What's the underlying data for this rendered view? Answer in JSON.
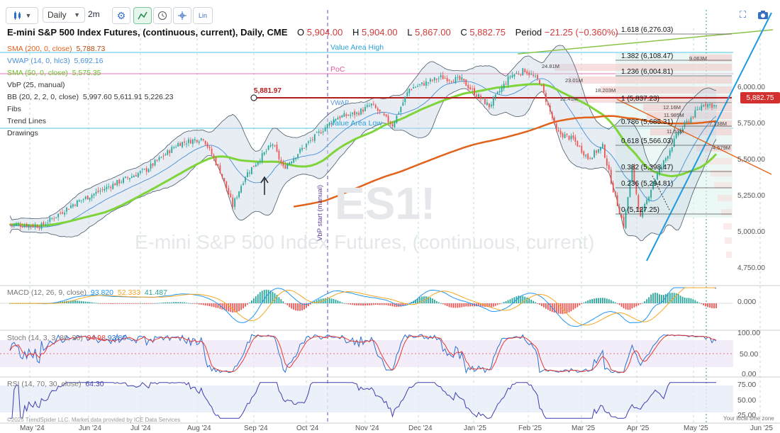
{
  "toolbar": {
    "chart_type_icon": "candlestick-icon",
    "interval": "Daily",
    "range": "2m",
    "lin_label": "Lin",
    "icons": [
      "gear-icon",
      "trend-icon",
      "clock-icon",
      "crosshair-icon",
      "fullscreen-icon",
      "camera-icon"
    ]
  },
  "header": {
    "title": "E-mini S&P 500 Index Futures, (continuous, current), Daily, CME",
    "o_label": "O",
    "o_value": "5,904.00",
    "h_label": "H",
    "h_value": "5,904.00",
    "l_label": "L",
    "l_value": "5,867.00",
    "c_label": "C",
    "c_value": "5,882.75",
    "period_label": "Period",
    "period_value": "−21.25 (−0.360%)"
  },
  "legend": {
    "sma200": {
      "label": "SMA (200, 0, close)",
      "value": "5,788.73",
      "color": "#e1621b"
    },
    "vwap": {
      "label": "VWAP (14, 0, hlc3)",
      "value": "5,692.16",
      "color": "#4a8fd6"
    },
    "sma50": {
      "label": "SMA (50, 0, close)",
      "value": "5,575.35",
      "color": "#7fd43a"
    },
    "vbp": {
      "label": "VbP (25, manual)"
    },
    "bb": {
      "label": "BB (20, 2, 2, 0, close)",
      "values": "5,997.60  5,611.91  5,226.23"
    },
    "fibs": "Fibs",
    "trend_lines": "Trend Lines",
    "drawings": "Drawings"
  },
  "watermark": {
    "symbol": "ES1!",
    "name": "E-mini S&P 500 Index Futures, (continuous, current)"
  },
  "annotations": {
    "value_area_high": "Value Area High",
    "poc": "PoC",
    "value_area_low": "Value Area Low",
    "vwap_tag": "VWAP",
    "vbp_start": "VbP start (manual)",
    "level_tag": "5,881.97",
    "last_price": "5,882.75"
  },
  "fib_levels": [
    {
      "label": "1.618 (6,276.03)",
      "value": 6276.03
    },
    {
      "label": "1.382 (6,108.47)",
      "value": 6108.47
    },
    {
      "label": "1.236 (6,004.81)",
      "value": 6004.81
    },
    {
      "label": "1 (5,837.23)",
      "value": 5837.23
    },
    {
      "label": "0.786 (5,685.31)",
      "value": 5685.31
    },
    {
      "label": "0.618 (5,566.03)",
      "value": 5566.03
    },
    {
      "label": "0.382 (5,398.47)",
      "value": 5398.47
    },
    {
      "label": "0.236 (5,294.81)",
      "value": 5294.81
    },
    {
      "label": "0 (5,127.25)",
      "value": 5127.25
    }
  ],
  "vbp_labels": [
    "9.063M",
    "24.81M",
    "23.01M",
    "18.203M",
    "22.41M",
    "12.16M",
    "11.985M",
    "7.138M",
    "11.53M",
    "4.579M"
  ],
  "price_axis": {
    "ticks": [
      6000,
      5750,
      5500,
      5250,
      5000,
      4750
    ],
    "labels": [
      "6,000.00",
      "5,750.00",
      "5,500.00",
      "5,250.00",
      "5,000.00",
      "4,750.00"
    ]
  },
  "macd": {
    "label": "MACD (12, 26, 9, close)",
    "v1": "93.820",
    "v2": "52.333",
    "v3": "41.487",
    "axis_label": "0.000"
  },
  "stoch": {
    "label": "Stoch (14, 3, 3, 80, 20)",
    "v1": "94.98",
    "v2": "93.86",
    "axis_labels": [
      "100.00",
      "50.00",
      "0.00"
    ]
  },
  "rsi": {
    "label": "RSI (14, 70, 30, close)",
    "value": "64.30",
    "axis_labels": [
      "75.00",
      "50.00",
      "25.00"
    ]
  },
  "x_axis": {
    "labels": [
      "May '24",
      "Jun '24",
      "Jul '24",
      "Aug '24",
      "Sep '24",
      "Oct '24",
      "Nov '24",
      "Dec '24",
      "Jan '25",
      "Feb '25",
      "Mar '25",
      "Apr '25",
      "May '25",
      "Jun '25"
    ]
  },
  "footer": {
    "copyright": "©2025 TrendSpider LLC. Market data provided by ICE Data Services",
    "timezone": "Your local time zone"
  },
  "colors": {
    "up": "#26a69a",
    "down": "#ef5350",
    "sma200": "#e1621b",
    "sma50": "#7fd43a",
    "vwap": "#4a8fd6",
    "trend_blue": "#1e9be0",
    "trend_green": "#8bc34a",
    "level_red": "#b71c1c",
    "macd": "#2196f3",
    "signal": "#f5a623",
    "stoch_k": "#2c6fd1",
    "stoch_d": "#e53935",
    "rsi": "#3f3fb0"
  },
  "chart_data": [
    {
      "type": "candlestick",
      "title": "E-mini S&P 500 Index Futures, (continuous, current), Daily, CME",
      "x": [
        "May '24",
        "Jun '24",
        "Jul '24",
        "Aug '24",
        "Sep '24",
        "Oct '24",
        "Nov '24",
        "Dec '24",
        "Jan '25",
        "Feb '25",
        "Mar '25",
        "Apr '25",
        "May '25"
      ],
      "series": [
        {
          "name": "Close",
          "values": [
            5280,
            5440,
            5620,
            5360,
            5560,
            5760,
            5950,
            6050,
            5960,
            6090,
            5650,
            5100,
            5880
          ]
        },
        {
          "name": "SMA (200, 0, close)",
          "values": [
            null,
            null,
            null,
            null,
            null,
            5250,
            5400,
            5560,
            5660,
            5730,
            5760,
            5740,
            5789
          ]
        },
        {
          "name": "SMA (50, 0, close)",
          "values": [
            5120,
            5230,
            5380,
            5440,
            5460,
            5600,
            5780,
            5920,
            5980,
            6000,
            5900,
            5600,
            5575
          ]
        }
      ],
      "ylim": [
        4750,
        6350
      ]
    },
    {
      "type": "line",
      "title": "MACD (12, 26, 9, close)",
      "series": [
        {
          "name": "MACD",
          "values": [
            20,
            30,
            40,
            -40,
            20,
            30,
            40,
            50,
            10,
            20,
            -80,
            -150,
            94
          ]
        },
        {
          "name": "Signal",
          "values": [
            15,
            25,
            35,
            -20,
            10,
            25,
            35,
            45,
            15,
            15,
            -60,
            -120,
            52
          ]
        }
      ]
    },
    {
      "type": "line",
      "title": "Stoch (14, 3, 3, 80, 20)",
      "ylim": [
        0,
        100
      ],
      "series": [
        {
          "name": "%K",
          "values": [
            80,
            60,
            90,
            20,
            70,
            60,
            85,
            70,
            40,
            80,
            20,
            30,
            95
          ]
        },
        {
          "name": "%D",
          "values": [
            75,
            65,
            85,
            25,
            65,
            62,
            80,
            72,
            45,
            75,
            25,
            25,
            94
          ]
        }
      ]
    },
    {
      "type": "line",
      "title": "RSI (14, 70, 30, close)",
      "ylim": [
        25,
        75
      ],
      "series": [
        {
          "name": "RSI",
          "values": [
            60,
            55,
            65,
            35,
            55,
            58,
            62,
            60,
            45,
            58,
            30,
            35,
            64
          ]
        }
      ]
    }
  ]
}
